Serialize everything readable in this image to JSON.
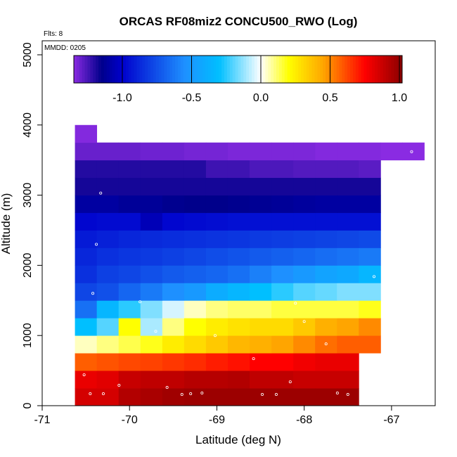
{
  "chart_data": {
    "type": "heatmap",
    "title": "ORCAS RF08miz2 CONCU500_RWO (Log)",
    "flights_label": "Flts: 8",
    "date_label": "MMDD: 0205",
    "xlabel": "Latitude (deg N)",
    "ylabel": "Altitude (m)",
    "xlim": [
      -71,
      -66.5
    ],
    "ylim": [
      0,
      5200
    ],
    "x_ticks": [
      -71,
      -70,
      -69,
      -68,
      -67
    ],
    "x_tick_labels": [
      "-71",
      "-70",
      "-69",
      "-68",
      "-67"
    ],
    "y_ticks": [
      0,
      1000,
      2000,
      3000,
      4000,
      5000
    ],
    "y_tick_labels": [
      "0",
      "1000",
      "2000",
      "3000",
      "4000",
      "5000"
    ],
    "grid": false,
    "colorbar": {
      "placement": "top",
      "range": [
        -1.35,
        1.02
      ],
      "ticks": [
        -1.0,
        -0.5,
        0.0,
        0.5,
        1.0
      ],
      "tick_labels": [
        "-1.0",
        "-0.5",
        "0.0",
        "0.5",
        "1.0"
      ],
      "colors": [
        "#8a2be2",
        "#00008b",
        "#0000cd",
        "#1e90ff",
        "#00bfff",
        "#ffffff",
        "#ffff00",
        "#ffa500",
        "#ff0000",
        "#8b0000"
      ]
    },
    "bin_width_deg": 0.25,
    "bin_height_m": 250,
    "cells": [
      {
        "lat": -70.5,
        "alt": 0,
        "v": 0.85
      },
      {
        "lat": -70.25,
        "alt": 0,
        "v": 0.85
      },
      {
        "lat": -70.0,
        "alt": 0,
        "v": 0.93
      },
      {
        "lat": -69.75,
        "alt": 0,
        "v": 0.95
      },
      {
        "lat": -69.5,
        "alt": 0,
        "v": 0.97
      },
      {
        "lat": -69.25,
        "alt": 0,
        "v": 0.98
      },
      {
        "lat": -69.0,
        "alt": 0,
        "v": 0.98
      },
      {
        "lat": -68.75,
        "alt": 0,
        "v": 0.98
      },
      {
        "lat": -68.5,
        "alt": 0,
        "v": 0.98
      },
      {
        "lat": -68.25,
        "alt": 0,
        "v": 0.98
      },
      {
        "lat": -68.0,
        "alt": 0,
        "v": 0.98
      },
      {
        "lat": -67.75,
        "alt": 0,
        "v": 0.98
      },
      {
        "lat": -67.5,
        "alt": 0,
        "v": 0.98
      },
      {
        "lat": -70.5,
        "alt": 250,
        "v": 0.8
      },
      {
        "lat": -70.25,
        "alt": 250,
        "v": 0.82
      },
      {
        "lat": -70.0,
        "alt": 250,
        "v": 0.88
      },
      {
        "lat": -69.75,
        "alt": 250,
        "v": 0.9
      },
      {
        "lat": -69.5,
        "alt": 250,
        "v": 0.9
      },
      {
        "lat": -69.25,
        "alt": 250,
        "v": 0.92
      },
      {
        "lat": -69.0,
        "alt": 250,
        "v": 0.92
      },
      {
        "lat": -68.75,
        "alt": 250,
        "v": 0.93
      },
      {
        "lat": -68.5,
        "alt": 250,
        "v": 0.9
      },
      {
        "lat": -68.25,
        "alt": 250,
        "v": 0.9
      },
      {
        "lat": -68.0,
        "alt": 250,
        "v": 0.88
      },
      {
        "lat": -67.75,
        "alt": 250,
        "v": 0.88
      },
      {
        "lat": -67.5,
        "alt": 250,
        "v": 0.88
      },
      {
        "lat": -70.5,
        "alt": 500,
        "v": 0.58
      },
      {
        "lat": -70.25,
        "alt": 500,
        "v": 0.6
      },
      {
        "lat": -70.0,
        "alt": 500,
        "v": 0.62
      },
      {
        "lat": -69.75,
        "alt": 500,
        "v": 0.63
      },
      {
        "lat": -69.5,
        "alt": 500,
        "v": 0.65
      },
      {
        "lat": -69.25,
        "alt": 500,
        "v": 0.67
      },
      {
        "lat": -69.0,
        "alt": 500,
        "v": 0.7
      },
      {
        "lat": -68.75,
        "alt": 500,
        "v": 0.72
      },
      {
        "lat": -68.5,
        "alt": 500,
        "v": 0.75
      },
      {
        "lat": -68.25,
        "alt": 500,
        "v": 0.75
      },
      {
        "lat": -68.0,
        "alt": 500,
        "v": 0.78
      },
      {
        "lat": -67.75,
        "alt": 500,
        "v": 0.8
      },
      {
        "lat": -67.5,
        "alt": 500,
        "v": 0.8
      },
      {
        "lat": -70.5,
        "alt": 750,
        "v": 0.05
      },
      {
        "lat": -70.25,
        "alt": 750,
        "v": 0.1
      },
      {
        "lat": -70.0,
        "alt": 750,
        "v": 0.14
      },
      {
        "lat": -69.75,
        "alt": 750,
        "v": 0.18
      },
      {
        "lat": -69.5,
        "alt": 750,
        "v": 0.25
      },
      {
        "lat": -69.25,
        "alt": 750,
        "v": 0.3
      },
      {
        "lat": -69.0,
        "alt": 750,
        "v": 0.35
      },
      {
        "lat": -68.75,
        "alt": 750,
        "v": 0.4
      },
      {
        "lat": -68.5,
        "alt": 750,
        "v": 0.42
      },
      {
        "lat": -68.25,
        "alt": 750,
        "v": 0.45
      },
      {
        "lat": -68.0,
        "alt": 750,
        "v": 0.5
      },
      {
        "lat": -67.75,
        "alt": 750,
        "v": 0.55
      },
      {
        "lat": -67.5,
        "alt": 750,
        "v": 0.58
      },
      {
        "lat": -67.25,
        "alt": 750,
        "v": 0.58
      },
      {
        "lat": -70.5,
        "alt": 1000,
        "v": -0.3
      },
      {
        "lat": -70.25,
        "alt": 1000,
        "v": -0.2
      },
      {
        "lat": -70.0,
        "alt": 1000,
        "v": 0.2
      },
      {
        "lat": -69.75,
        "alt": 1000,
        "v": -0.1
      },
      {
        "lat": -69.5,
        "alt": 1000,
        "v": 0.1
      },
      {
        "lat": -69.25,
        "alt": 1000,
        "v": 0.2
      },
      {
        "lat": -69.0,
        "alt": 1000,
        "v": 0.25
      },
      {
        "lat": -68.75,
        "alt": 1000,
        "v": 0.28
      },
      {
        "lat": -68.5,
        "alt": 1000,
        "v": 0.3
      },
      {
        "lat": -68.25,
        "alt": 1000,
        "v": 0.3
      },
      {
        "lat": -68.0,
        "alt": 1000,
        "v": 0.35
      },
      {
        "lat": -67.75,
        "alt": 1000,
        "v": 0.42
      },
      {
        "lat": -67.5,
        "alt": 1000,
        "v": 0.45
      },
      {
        "lat": -67.25,
        "alt": 1000,
        "v": 0.5
      },
      {
        "lat": -70.5,
        "alt": 1250,
        "v": -0.65
      },
      {
        "lat": -70.25,
        "alt": 1250,
        "v": -0.35
      },
      {
        "lat": -70.0,
        "alt": 1250,
        "v": -0.25
      },
      {
        "lat": -69.75,
        "alt": 1250,
        "v": -0.15
      },
      {
        "lat": -69.5,
        "alt": 1250,
        "v": -0.05
      },
      {
        "lat": -69.25,
        "alt": 1250,
        "v": 0.05
      },
      {
        "lat": -69.0,
        "alt": 1250,
        "v": 0.1
      },
      {
        "lat": -68.75,
        "alt": 1250,
        "v": 0.12
      },
      {
        "lat": -68.5,
        "alt": 1250,
        "v": 0.12
      },
      {
        "lat": -68.25,
        "alt": 1250,
        "v": 0.15
      },
      {
        "lat": -68.0,
        "alt": 1250,
        "v": 0.15
      },
      {
        "lat": -67.75,
        "alt": 1250,
        "v": 0.15
      },
      {
        "lat": -67.5,
        "alt": 1250,
        "v": 0.15
      },
      {
        "lat": -67.25,
        "alt": 1250,
        "v": 0.18
      },
      {
        "lat": -70.5,
        "alt": 1500,
        "v": -0.78
      },
      {
        "lat": -70.25,
        "alt": 1500,
        "v": -0.75
      },
      {
        "lat": -70.0,
        "alt": 1500,
        "v": -0.68
      },
      {
        "lat": -69.75,
        "alt": 1500,
        "v": -0.62
      },
      {
        "lat": -69.5,
        "alt": 1500,
        "v": -0.55
      },
      {
        "lat": -69.25,
        "alt": 1500,
        "v": -0.5
      },
      {
        "lat": -69.0,
        "alt": 1500,
        "v": -0.4
      },
      {
        "lat": -68.75,
        "alt": 1500,
        "v": -0.35
      },
      {
        "lat": -68.5,
        "alt": 1500,
        "v": -0.3
      },
      {
        "lat": -68.25,
        "alt": 1500,
        "v": -0.25
      },
      {
        "lat": -68.0,
        "alt": 1500,
        "v": -0.2
      },
      {
        "lat": -67.75,
        "alt": 1500,
        "v": -0.18
      },
      {
        "lat": -67.5,
        "alt": 1500,
        "v": -0.15
      },
      {
        "lat": -67.25,
        "alt": 1500,
        "v": -0.15
      },
      {
        "lat": -70.5,
        "alt": 1750,
        "v": -0.85
      },
      {
        "lat": -70.25,
        "alt": 1750,
        "v": -0.8
      },
      {
        "lat": -70.0,
        "alt": 1750,
        "v": -0.78
      },
      {
        "lat": -69.75,
        "alt": 1750,
        "v": -0.75
      },
      {
        "lat": -69.5,
        "alt": 1750,
        "v": -0.72
      },
      {
        "lat": -69.25,
        "alt": 1750,
        "v": -0.7
      },
      {
        "lat": -69.0,
        "alt": 1750,
        "v": -0.68
      },
      {
        "lat": -68.75,
        "alt": 1750,
        "v": -0.65
      },
      {
        "lat": -68.5,
        "alt": 1750,
        "v": -0.6
      },
      {
        "lat": -68.25,
        "alt": 1750,
        "v": -0.55
      },
      {
        "lat": -68.0,
        "alt": 1750,
        "v": -0.5
      },
      {
        "lat": -67.75,
        "alt": 1750,
        "v": -0.45
      },
      {
        "lat": -67.5,
        "alt": 1750,
        "v": -0.42
      },
      {
        "lat": -67.25,
        "alt": 1750,
        "v": -0.35
      },
      {
        "lat": -70.5,
        "alt": 2000,
        "v": -0.88
      },
      {
        "lat": -70.25,
        "alt": 2000,
        "v": -0.85
      },
      {
        "lat": -70.0,
        "alt": 2000,
        "v": -0.83
      },
      {
        "lat": -69.75,
        "alt": 2000,
        "v": -0.82
      },
      {
        "lat": -69.5,
        "alt": 2000,
        "v": -0.8
      },
      {
        "lat": -69.25,
        "alt": 2000,
        "v": -0.78
      },
      {
        "lat": -69.0,
        "alt": 2000,
        "v": -0.76
      },
      {
        "lat": -68.75,
        "alt": 2000,
        "v": -0.74
      },
      {
        "lat": -68.5,
        "alt": 2000,
        "v": -0.72
      },
      {
        "lat": -68.25,
        "alt": 2000,
        "v": -0.7
      },
      {
        "lat": -68.0,
        "alt": 2000,
        "v": -0.68
      },
      {
        "lat": -67.75,
        "alt": 2000,
        "v": -0.66
      },
      {
        "lat": -67.5,
        "alt": 2000,
        "v": -0.64
      },
      {
        "lat": -67.25,
        "alt": 2000,
        "v": -0.62
      },
      {
        "lat": -70.5,
        "alt": 2250,
        "v": -0.92
      },
      {
        "lat": -70.25,
        "alt": 2250,
        "v": -0.9
      },
      {
        "lat": -70.0,
        "alt": 2250,
        "v": -0.88
      },
      {
        "lat": -69.75,
        "alt": 2250,
        "v": -0.87
      },
      {
        "lat": -69.5,
        "alt": 2250,
        "v": -0.86
      },
      {
        "lat": -69.25,
        "alt": 2250,
        "v": -0.85
      },
      {
        "lat": -69.0,
        "alt": 2250,
        "v": -0.84
      },
      {
        "lat": -68.75,
        "alt": 2250,
        "v": -0.83
      },
      {
        "lat": -68.5,
        "alt": 2250,
        "v": -0.82
      },
      {
        "lat": -68.25,
        "alt": 2250,
        "v": -0.81
      },
      {
        "lat": -68.0,
        "alt": 2250,
        "v": -0.8
      },
      {
        "lat": -67.75,
        "alt": 2250,
        "v": -0.79
      },
      {
        "lat": -67.5,
        "alt": 2250,
        "v": -0.78
      },
      {
        "lat": -67.25,
        "alt": 2250,
        "v": -0.77
      },
      {
        "lat": -70.5,
        "alt": 2500,
        "v": -0.98
      },
      {
        "lat": -70.25,
        "alt": 2500,
        "v": -0.97
      },
      {
        "lat": -70.0,
        "alt": 2500,
        "v": -0.97
      },
      {
        "lat": -69.75,
        "alt": 2500,
        "v": -1.05
      },
      {
        "lat": -69.5,
        "alt": 2500,
        "v": -0.98
      },
      {
        "lat": -69.25,
        "alt": 2500,
        "v": -0.97
      },
      {
        "lat": -69.0,
        "alt": 2500,
        "v": -0.96
      },
      {
        "lat": -68.75,
        "alt": 2500,
        "v": -0.95
      },
      {
        "lat": -68.5,
        "alt": 2500,
        "v": -0.95
      },
      {
        "lat": -68.25,
        "alt": 2500,
        "v": -0.95
      },
      {
        "lat": -68.0,
        "alt": 2500,
        "v": -0.95
      },
      {
        "lat": -67.75,
        "alt": 2500,
        "v": -0.95
      },
      {
        "lat": -67.5,
        "alt": 2500,
        "v": -0.95
      },
      {
        "lat": -67.25,
        "alt": 2500,
        "v": -0.95
      },
      {
        "lat": -70.5,
        "alt": 2750,
        "v": -1.1
      },
      {
        "lat": -70.25,
        "alt": 2750,
        "v": -1.1
      },
      {
        "lat": -70.0,
        "alt": 2750,
        "v": -1.12
      },
      {
        "lat": -69.75,
        "alt": 2750,
        "v": -1.12
      },
      {
        "lat": -69.5,
        "alt": 2750,
        "v": -1.14
      },
      {
        "lat": -69.25,
        "alt": 2750,
        "v": -1.15
      },
      {
        "lat": -69.0,
        "alt": 2750,
        "v": -1.15
      },
      {
        "lat": -68.75,
        "alt": 2750,
        "v": -1.14
      },
      {
        "lat": -68.5,
        "alt": 2750,
        "v": -1.13
      },
      {
        "lat": -68.25,
        "alt": 2750,
        "v": -1.12
      },
      {
        "lat": -68.0,
        "alt": 2750,
        "v": -1.11
      },
      {
        "lat": -67.75,
        "alt": 2750,
        "v": -1.1
      },
      {
        "lat": -67.5,
        "alt": 2750,
        "v": -1.1
      },
      {
        "lat": -67.25,
        "alt": 2750,
        "v": -1.1
      },
      {
        "lat": -70.5,
        "alt": 3000,
        "v": -1.18
      },
      {
        "lat": -70.25,
        "alt": 3000,
        "v": -1.18
      },
      {
        "lat": -70.0,
        "alt": 3000,
        "v": -1.18
      },
      {
        "lat": -69.75,
        "alt": 3000,
        "v": -1.18
      },
      {
        "lat": -69.5,
        "alt": 3000,
        "v": -1.18
      },
      {
        "lat": -69.25,
        "alt": 3000,
        "v": -1.18
      },
      {
        "lat": -69.0,
        "alt": 3000,
        "v": -1.18
      },
      {
        "lat": -68.75,
        "alt": 3000,
        "v": -1.18
      },
      {
        "lat": -68.5,
        "alt": 3000,
        "v": -1.18
      },
      {
        "lat": -68.25,
        "alt": 3000,
        "v": -1.18
      },
      {
        "lat": -68.0,
        "alt": 3000,
        "v": -1.18
      },
      {
        "lat": -67.75,
        "alt": 3000,
        "v": -1.18
      },
      {
        "lat": -67.5,
        "alt": 3000,
        "v": -1.18
      },
      {
        "lat": -67.25,
        "alt": 3000,
        "v": -1.18
      },
      {
        "lat": -70.5,
        "alt": 3250,
        "v": -1.2
      },
      {
        "lat": -70.25,
        "alt": 3250,
        "v": -1.2
      },
      {
        "lat": -70.0,
        "alt": 3250,
        "v": -1.2
      },
      {
        "lat": -69.75,
        "alt": 3250,
        "v": -1.2
      },
      {
        "lat": -69.5,
        "alt": 3250,
        "v": -1.2
      },
      {
        "lat": -69.25,
        "alt": 3250,
        "v": -1.2
      },
      {
        "lat": -69.0,
        "alt": 3250,
        "v": -1.24
      },
      {
        "lat": -68.75,
        "alt": 3250,
        "v": -1.24
      },
      {
        "lat": -68.5,
        "alt": 3250,
        "v": -1.26
      },
      {
        "lat": -68.25,
        "alt": 3250,
        "v": -1.26
      },
      {
        "lat": -68.0,
        "alt": 3250,
        "v": -1.27
      },
      {
        "lat": -67.75,
        "alt": 3250,
        "v": -1.27
      },
      {
        "lat": -67.5,
        "alt": 3250,
        "v": -1.27
      },
      {
        "lat": -67.25,
        "alt": 3250,
        "v": -1.28
      },
      {
        "lat": -70.5,
        "alt": 3500,
        "v": -1.3
      },
      {
        "lat": -70.25,
        "alt": 3500,
        "v": -1.3
      },
      {
        "lat": -70.0,
        "alt": 3500,
        "v": -1.3
      },
      {
        "lat": -69.75,
        "alt": 3500,
        "v": -1.31
      },
      {
        "lat": -69.5,
        "alt": 3500,
        "v": -1.31
      },
      {
        "lat": -69.25,
        "alt": 3500,
        "v": -1.32
      },
      {
        "lat": -69.0,
        "alt": 3500,
        "v": -1.32
      },
      {
        "lat": -68.75,
        "alt": 3500,
        "v": -1.33
      },
      {
        "lat": -68.5,
        "alt": 3500,
        "v": -1.33
      },
      {
        "lat": -68.25,
        "alt": 3500,
        "v": -1.33
      },
      {
        "lat": -68.0,
        "alt": 3500,
        "v": -1.33
      },
      {
        "lat": -67.75,
        "alt": 3500,
        "v": -1.34
      },
      {
        "lat": -67.5,
        "alt": 3500,
        "v": -1.34
      },
      {
        "lat": -67.25,
        "alt": 3500,
        "v": -1.34
      },
      {
        "lat": -67.0,
        "alt": 3500,
        "v": -1.35
      },
      {
        "lat": -66.75,
        "alt": 3500,
        "v": -1.35
      },
      {
        "lat": -70.5,
        "alt": 3750,
        "v": -1.34
      }
    ],
    "sample_points": [
      {
        "lat": -70.27,
        "alt": 3800
      },
      {
        "lat": -66.77,
        "alt": 3620
      },
      {
        "lat": -70.33,
        "alt": 3030
      },
      {
        "lat": -70.38,
        "alt": 2300
      },
      {
        "lat": -67.2,
        "alt": 1840
      },
      {
        "lat": -70.42,
        "alt": 1600
      },
      {
        "lat": -69.88,
        "alt": 1480
      },
      {
        "lat": -68.1,
        "alt": 1460
      },
      {
        "lat": -69.7,
        "alt": 1060
      },
      {
        "lat": -68.0,
        "alt": 1200
      },
      {
        "lat": -67.1,
        "alt": 980
      },
      {
        "lat": -67.75,
        "alt": 880
      },
      {
        "lat": -69.02,
        "alt": 1000
      },
      {
        "lat": -68.58,
        "alt": 670
      },
      {
        "lat": -70.52,
        "alt": 440
      },
      {
        "lat": -68.16,
        "alt": 340
      },
      {
        "lat": -70.12,
        "alt": 290
      },
      {
        "lat": -69.57,
        "alt": 260
      },
      {
        "lat": -70.45,
        "alt": 170
      },
      {
        "lat": -70.3,
        "alt": 170
      },
      {
        "lat": -69.4,
        "alt": 160
      },
      {
        "lat": -69.3,
        "alt": 170
      },
      {
        "lat": -69.17,
        "alt": 180
      },
      {
        "lat": -68.48,
        "alt": 160
      },
      {
        "lat": -68.32,
        "alt": 160
      },
      {
        "lat": -67.62,
        "alt": 180
      },
      {
        "lat": -67.5,
        "alt": 160
      },
      {
        "lat": -67.35,
        "alt": 180
      }
    ]
  }
}
